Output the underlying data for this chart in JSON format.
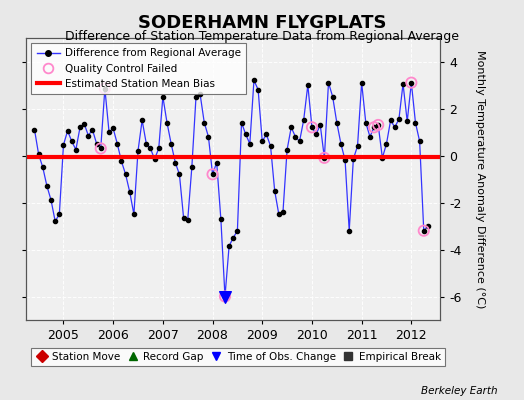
{
  "title": "SODERHAMN FLYGPLATS",
  "subtitle": "Difference of Station Temperature Data from Regional Average",
  "ylabel": "Monthly Temperature Anomaly Difference (°C)",
  "bias_value": -0.05,
  "background_color": "#e8e8e8",
  "line_color": "#3333ff",
  "bias_color": "#ff0000",
  "marker_color": "#000000",
  "qc_failed_color": "#ff88cc",
  "ylim": [
    -7.0,
    5.0
  ],
  "yticks": [
    -6,
    -4,
    -2,
    0,
    2,
    4
  ],
  "xlim_left": 2004.25,
  "xlim_right": 2012.58,
  "xticks": [
    2005,
    2006,
    2007,
    2008,
    2009,
    2010,
    2011,
    2012
  ],
  "raw": [
    [
      2004.417,
      1.1
    ],
    [
      2004.5,
      0.05
    ],
    [
      2004.583,
      -0.5
    ],
    [
      2004.667,
      -1.3
    ],
    [
      2004.75,
      -1.9
    ],
    [
      2004.833,
      -2.8
    ],
    [
      2004.917,
      -2.5
    ],
    [
      2005.0,
      0.45
    ],
    [
      2005.083,
      1.05
    ],
    [
      2005.167,
      0.6
    ],
    [
      2005.25,
      0.25
    ],
    [
      2005.333,
      1.2
    ],
    [
      2005.417,
      1.35
    ],
    [
      2005.5,
      0.85
    ],
    [
      2005.583,
      1.1
    ],
    [
      2005.667,
      0.5
    ],
    [
      2005.75,
      0.3
    ],
    [
      2005.833,
      2.85
    ],
    [
      2005.917,
      1.0
    ],
    [
      2006.0,
      1.15
    ],
    [
      2006.083,
      0.5
    ],
    [
      2006.167,
      -0.25
    ],
    [
      2006.25,
      -0.8
    ],
    [
      2006.333,
      -1.55
    ],
    [
      2006.417,
      -2.5
    ],
    [
      2006.5,
      0.2
    ],
    [
      2006.583,
      1.5
    ],
    [
      2006.667,
      0.5
    ],
    [
      2006.75,
      0.3
    ],
    [
      2006.833,
      -0.15
    ],
    [
      2006.917,
      0.3
    ],
    [
      2007.0,
      2.5
    ],
    [
      2007.083,
      1.4
    ],
    [
      2007.167,
      0.5
    ],
    [
      2007.25,
      -0.3
    ],
    [
      2007.333,
      -0.8
    ],
    [
      2007.417,
      -2.65
    ],
    [
      2007.5,
      -2.75
    ],
    [
      2007.583,
      -0.5
    ],
    [
      2007.667,
      2.5
    ],
    [
      2007.75,
      2.6
    ],
    [
      2007.833,
      1.4
    ],
    [
      2007.917,
      0.8
    ],
    [
      2008.0,
      -0.8
    ],
    [
      2008.083,
      -0.3
    ],
    [
      2008.167,
      -2.7
    ],
    [
      2008.25,
      -6.0
    ],
    [
      2008.333,
      -3.85
    ],
    [
      2008.417,
      -3.5
    ],
    [
      2008.5,
      -3.2
    ],
    [
      2008.583,
      1.4
    ],
    [
      2008.667,
      0.9
    ],
    [
      2008.75,
      0.5
    ],
    [
      2008.833,
      3.2
    ],
    [
      2008.917,
      2.8
    ],
    [
      2009.0,
      0.6
    ],
    [
      2009.083,
      0.9
    ],
    [
      2009.167,
      0.4
    ],
    [
      2009.25,
      -1.5
    ],
    [
      2009.333,
      -2.5
    ],
    [
      2009.417,
      -2.4
    ],
    [
      2009.5,
      0.25
    ],
    [
      2009.583,
      1.2
    ],
    [
      2009.667,
      0.8
    ],
    [
      2009.75,
      0.6
    ],
    [
      2009.833,
      1.5
    ],
    [
      2009.917,
      3.0
    ],
    [
      2010.0,
      1.2
    ],
    [
      2010.083,
      0.9
    ],
    [
      2010.167,
      1.3
    ],
    [
      2010.25,
      -0.1
    ],
    [
      2010.333,
      3.1
    ],
    [
      2010.417,
      2.5
    ],
    [
      2010.5,
      1.4
    ],
    [
      2010.583,
      0.5
    ],
    [
      2010.667,
      -0.2
    ],
    [
      2010.75,
      -3.2
    ],
    [
      2010.833,
      -0.15
    ],
    [
      2010.917,
      0.4
    ],
    [
      2011.0,
      3.1
    ],
    [
      2011.083,
      1.4
    ],
    [
      2011.167,
      0.8
    ],
    [
      2011.25,
      1.2
    ],
    [
      2011.333,
      1.3
    ],
    [
      2011.417,
      -0.1
    ],
    [
      2011.5,
      0.5
    ],
    [
      2011.583,
      1.5
    ],
    [
      2011.667,
      1.2
    ],
    [
      2011.75,
      1.55
    ],
    [
      2011.833,
      3.05
    ],
    [
      2011.917,
      1.45
    ],
    [
      2012.0,
      3.1
    ],
    [
      2012.083,
      1.4
    ],
    [
      2012.167,
      0.6
    ],
    [
      2012.25,
      -3.2
    ],
    [
      2012.333,
      -3.0
    ]
  ],
  "qc_x": [
    2005.75,
    2005.833,
    2008.0,
    2008.25,
    2010.0,
    2010.25,
    2011.25,
    2011.333,
    2012.0,
    2012.25
  ],
  "qc_y": [
    0.3,
    2.85,
    -0.8,
    -6.0,
    1.2,
    -0.1,
    1.2,
    1.3,
    3.1,
    -3.2
  ],
  "tobs_x": [
    2008.25
  ],
  "tobs_y": [
    -6.0
  ],
  "title_fontsize": 13,
  "subtitle_fontsize": 9,
  "tick_fontsize": 9,
  "ylabel_fontsize": 8
}
